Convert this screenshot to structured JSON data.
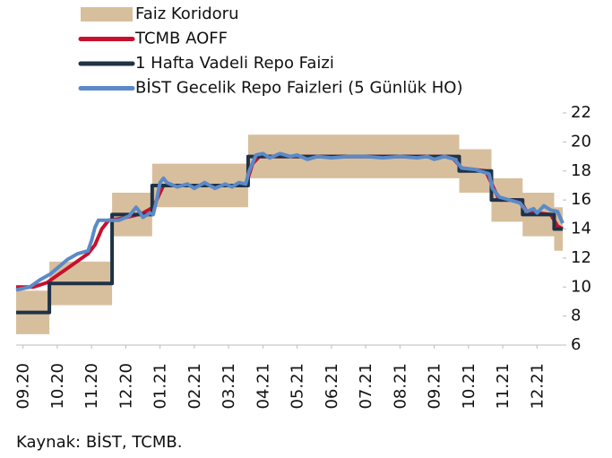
{
  "chart_data": {
    "type": "line",
    "source": "Kaynak: BİST, TCMB.",
    "xlim": [
      -0.2,
      15.75
    ],
    "ylim": [
      6,
      22
    ],
    "yticks": [
      6,
      8,
      10,
      12,
      14,
      16,
      18,
      20,
      22
    ],
    "xticks": [
      {
        "value": 0,
        "label": "09.20"
      },
      {
        "value": 1,
        "label": "10.20"
      },
      {
        "value": 2,
        "label": "11.20"
      },
      {
        "value": 3,
        "label": "12.20"
      },
      {
        "value": 4,
        "label": "01.21"
      },
      {
        "value": 5,
        "label": "02.21"
      },
      {
        "value": 6,
        "label": "03.21"
      },
      {
        "value": 7,
        "label": "04.21"
      },
      {
        "value": 8,
        "label": "05.21"
      },
      {
        "value": 9,
        "label": "06.21"
      },
      {
        "value": 10,
        "label": "07.21"
      },
      {
        "value": 11,
        "label": "08.21"
      },
      {
        "value": 12,
        "label": "09.21"
      },
      {
        "value": 13,
        "label": "10.21"
      },
      {
        "value": 14,
        "label": "11.21"
      },
      {
        "value": 15,
        "label": "12.21"
      }
    ],
    "series": [
      {
        "name": "Faiz Koridoru",
        "type": "band",
        "color": "#d7bf9d",
        "x": [
          -0.2,
          0.77,
          0.77,
          2.6,
          2.6,
          3.77,
          3.77,
          6.57,
          6.57,
          12.73,
          12.73,
          13.67,
          13.67,
          14.58,
          14.58,
          15.5,
          15.5,
          15.75
        ],
        "lower": [
          6.75,
          6.75,
          8.75,
          8.75,
          13.5,
          13.5,
          15.5,
          15.5,
          17.5,
          17.5,
          16.5,
          16.5,
          14.5,
          14.5,
          13.5,
          13.5,
          12.5,
          12.5
        ],
        "upper": [
          9.75,
          9.75,
          11.75,
          11.75,
          16.5,
          16.5,
          18.5,
          18.5,
          20.5,
          20.5,
          19.5,
          19.5,
          17.5,
          17.5,
          16.5,
          16.5,
          15.5,
          15.5
        ]
      },
      {
        "name": "TCMB AOFF",
        "color": "#c8102e",
        "x": [
          -0.2,
          0.3,
          0.7,
          1.0,
          1.3,
          1.6,
          1.9,
          2.1,
          2.3,
          2.5,
          2.8,
          3.2,
          3.5,
          3.8,
          4.0,
          4.1,
          4.5,
          5.0,
          6.0,
          6.5,
          6.7,
          6.9,
          7.5,
          12.5,
          12.8,
          13.5,
          13.7,
          13.9,
          14.5,
          14.7,
          15.4,
          15.6,
          15.75
        ],
        "values": [
          10.0,
          10.0,
          10.3,
          10.8,
          11.3,
          11.8,
          12.3,
          12.9,
          14.0,
          14.6,
          14.7,
          14.9,
          15.1,
          15.5,
          16.5,
          17.0,
          17.0,
          17.0,
          17.0,
          17.0,
          18.5,
          19.0,
          19.0,
          19.0,
          18.2,
          18.0,
          17.0,
          16.0,
          16.0,
          15.2,
          15.0,
          14.2,
          14.0
        ]
      },
      {
        "name": "1 Hafta Vadeli Repo Faizi",
        "color": "#1f3247",
        "x": [
          -0.2,
          0.77,
          0.77,
          2.6,
          2.6,
          3.77,
          3.77,
          6.57,
          6.57,
          12.73,
          12.73,
          13.67,
          13.67,
          14.58,
          14.58,
          15.5,
          15.5,
          15.75
        ],
        "values": [
          8.25,
          8.25,
          10.25,
          10.25,
          15,
          15,
          17,
          17,
          19,
          19,
          18,
          18,
          16,
          16,
          15,
          15,
          14,
          14
        ]
      },
      {
        "name": "BİST Gecelik Repo Faizleri (5 Günlük HO)",
        "color": "#5b8ac8",
        "x": [
          -0.2,
          0.2,
          0.5,
          0.8,
          1.0,
          1.3,
          1.6,
          1.9,
          2.0,
          2.1,
          2.2,
          2.5,
          2.8,
          3.1,
          3.3,
          3.4,
          3.5,
          3.7,
          3.8,
          3.9,
          4.0,
          4.1,
          4.2,
          4.5,
          4.8,
          5.0,
          5.3,
          5.6,
          5.9,
          6.1,
          6.3,
          6.5,
          6.6,
          6.8,
          7.0,
          7.2,
          7.5,
          7.8,
          8.0,
          8.3,
          8.6,
          9.0,
          9.5,
          10,
          10.5,
          11,
          11.5,
          11.8,
          12.0,
          12.3,
          12.6,
          12.8,
          13.2,
          13.6,
          13.7,
          13.9,
          14.2,
          14.5,
          14.7,
          14.9,
          15.0,
          15.2,
          15.4,
          15.6,
          15.75
        ],
        "values": [
          9.8,
          10.0,
          10.5,
          10.9,
          11.3,
          11.9,
          12.3,
          12.5,
          13.2,
          14.1,
          14.6,
          14.6,
          14.6,
          14.9,
          15.5,
          15.2,
          14.8,
          15.1,
          15.0,
          16.0,
          17.2,
          17.5,
          17.2,
          16.9,
          17.1,
          16.8,
          17.2,
          16.8,
          17.1,
          16.9,
          17.2,
          17.1,
          18.0,
          19.1,
          19.2,
          18.9,
          19.2,
          19.0,
          19.1,
          18.8,
          19.0,
          18.9,
          19.0,
          19.0,
          18.9,
          19.0,
          18.9,
          19.0,
          18.8,
          19.0,
          18.8,
          18.2,
          18.1,
          17.8,
          16.8,
          16.2,
          16.0,
          15.8,
          15.2,
          15.4,
          15.1,
          15.6,
          15.3,
          15.2,
          14.4
        ]
      }
    ]
  }
}
